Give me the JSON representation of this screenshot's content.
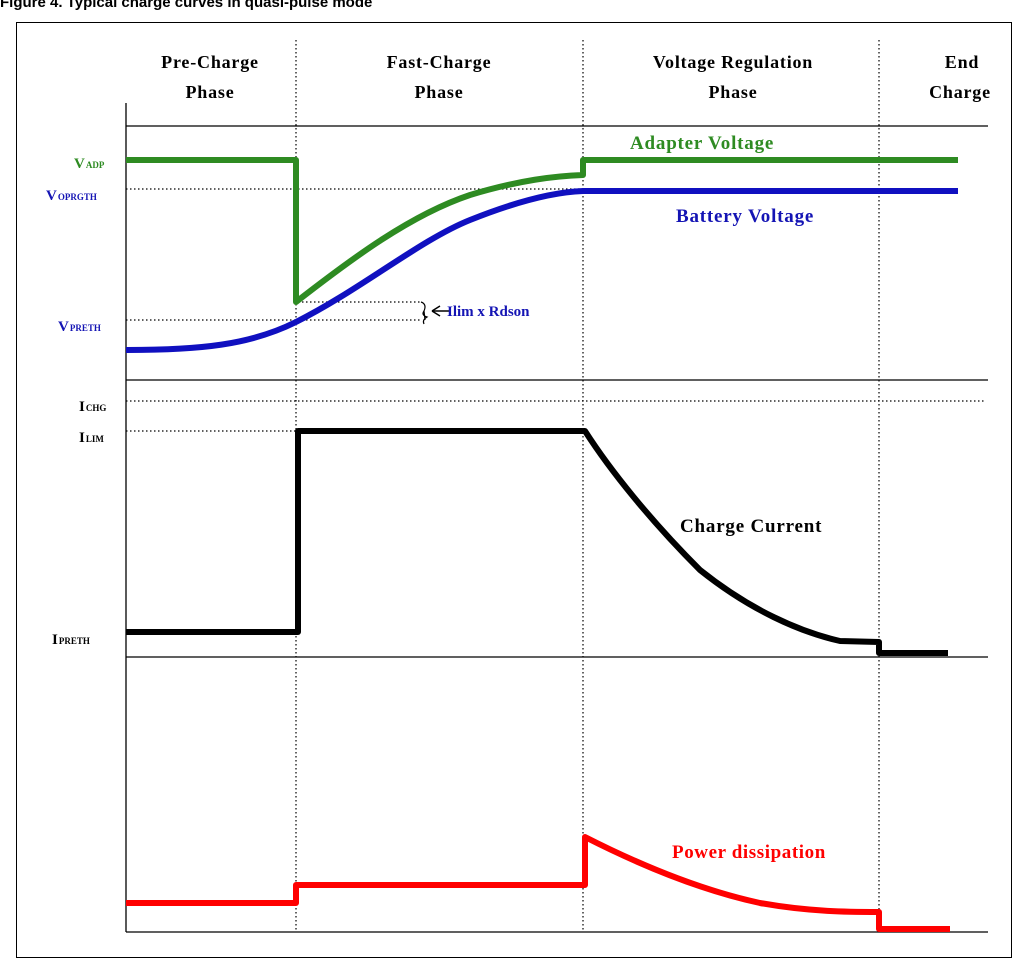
{
  "figure": {
    "caption": "Figure 4. Typical charge curves in quasi-pulse mode"
  },
  "colors": {
    "adapter": "#2e8b22",
    "battery": "#1010c0",
    "current": "#000000",
    "power": "#ff0000",
    "label_blue": "#1414b4"
  },
  "phases": [
    {
      "line1": "Pre-Charge",
      "line2": "Phase"
    },
    {
      "line1": "Fast-Charge",
      "line2": "Phase"
    },
    {
      "line1": "Voltage Regulation",
      "line2": "Phase"
    },
    {
      "line1": "End",
      "line2": "Charge"
    }
  ],
  "y_labels": {
    "vadp": {
      "main": "V",
      "sub": "ADP"
    },
    "voprgth": {
      "main": "V",
      "sub": "OPRGTH"
    },
    "vpreth": {
      "main": "V",
      "sub": "PRETH"
    },
    "ichg": {
      "main": "I",
      "sub": "CHG"
    },
    "ilim": {
      "main": "I",
      "sub": "LIM"
    },
    "ipreth": {
      "main": "I",
      "sub": "PRETH"
    }
  },
  "curve_labels": {
    "adapter": "Adapter Voltage",
    "battery": "Battery Voltage",
    "ilim_rdson": "Ilim x Rdson",
    "charge_current": "Charge Current",
    "power": "Power dissipation"
  }
}
